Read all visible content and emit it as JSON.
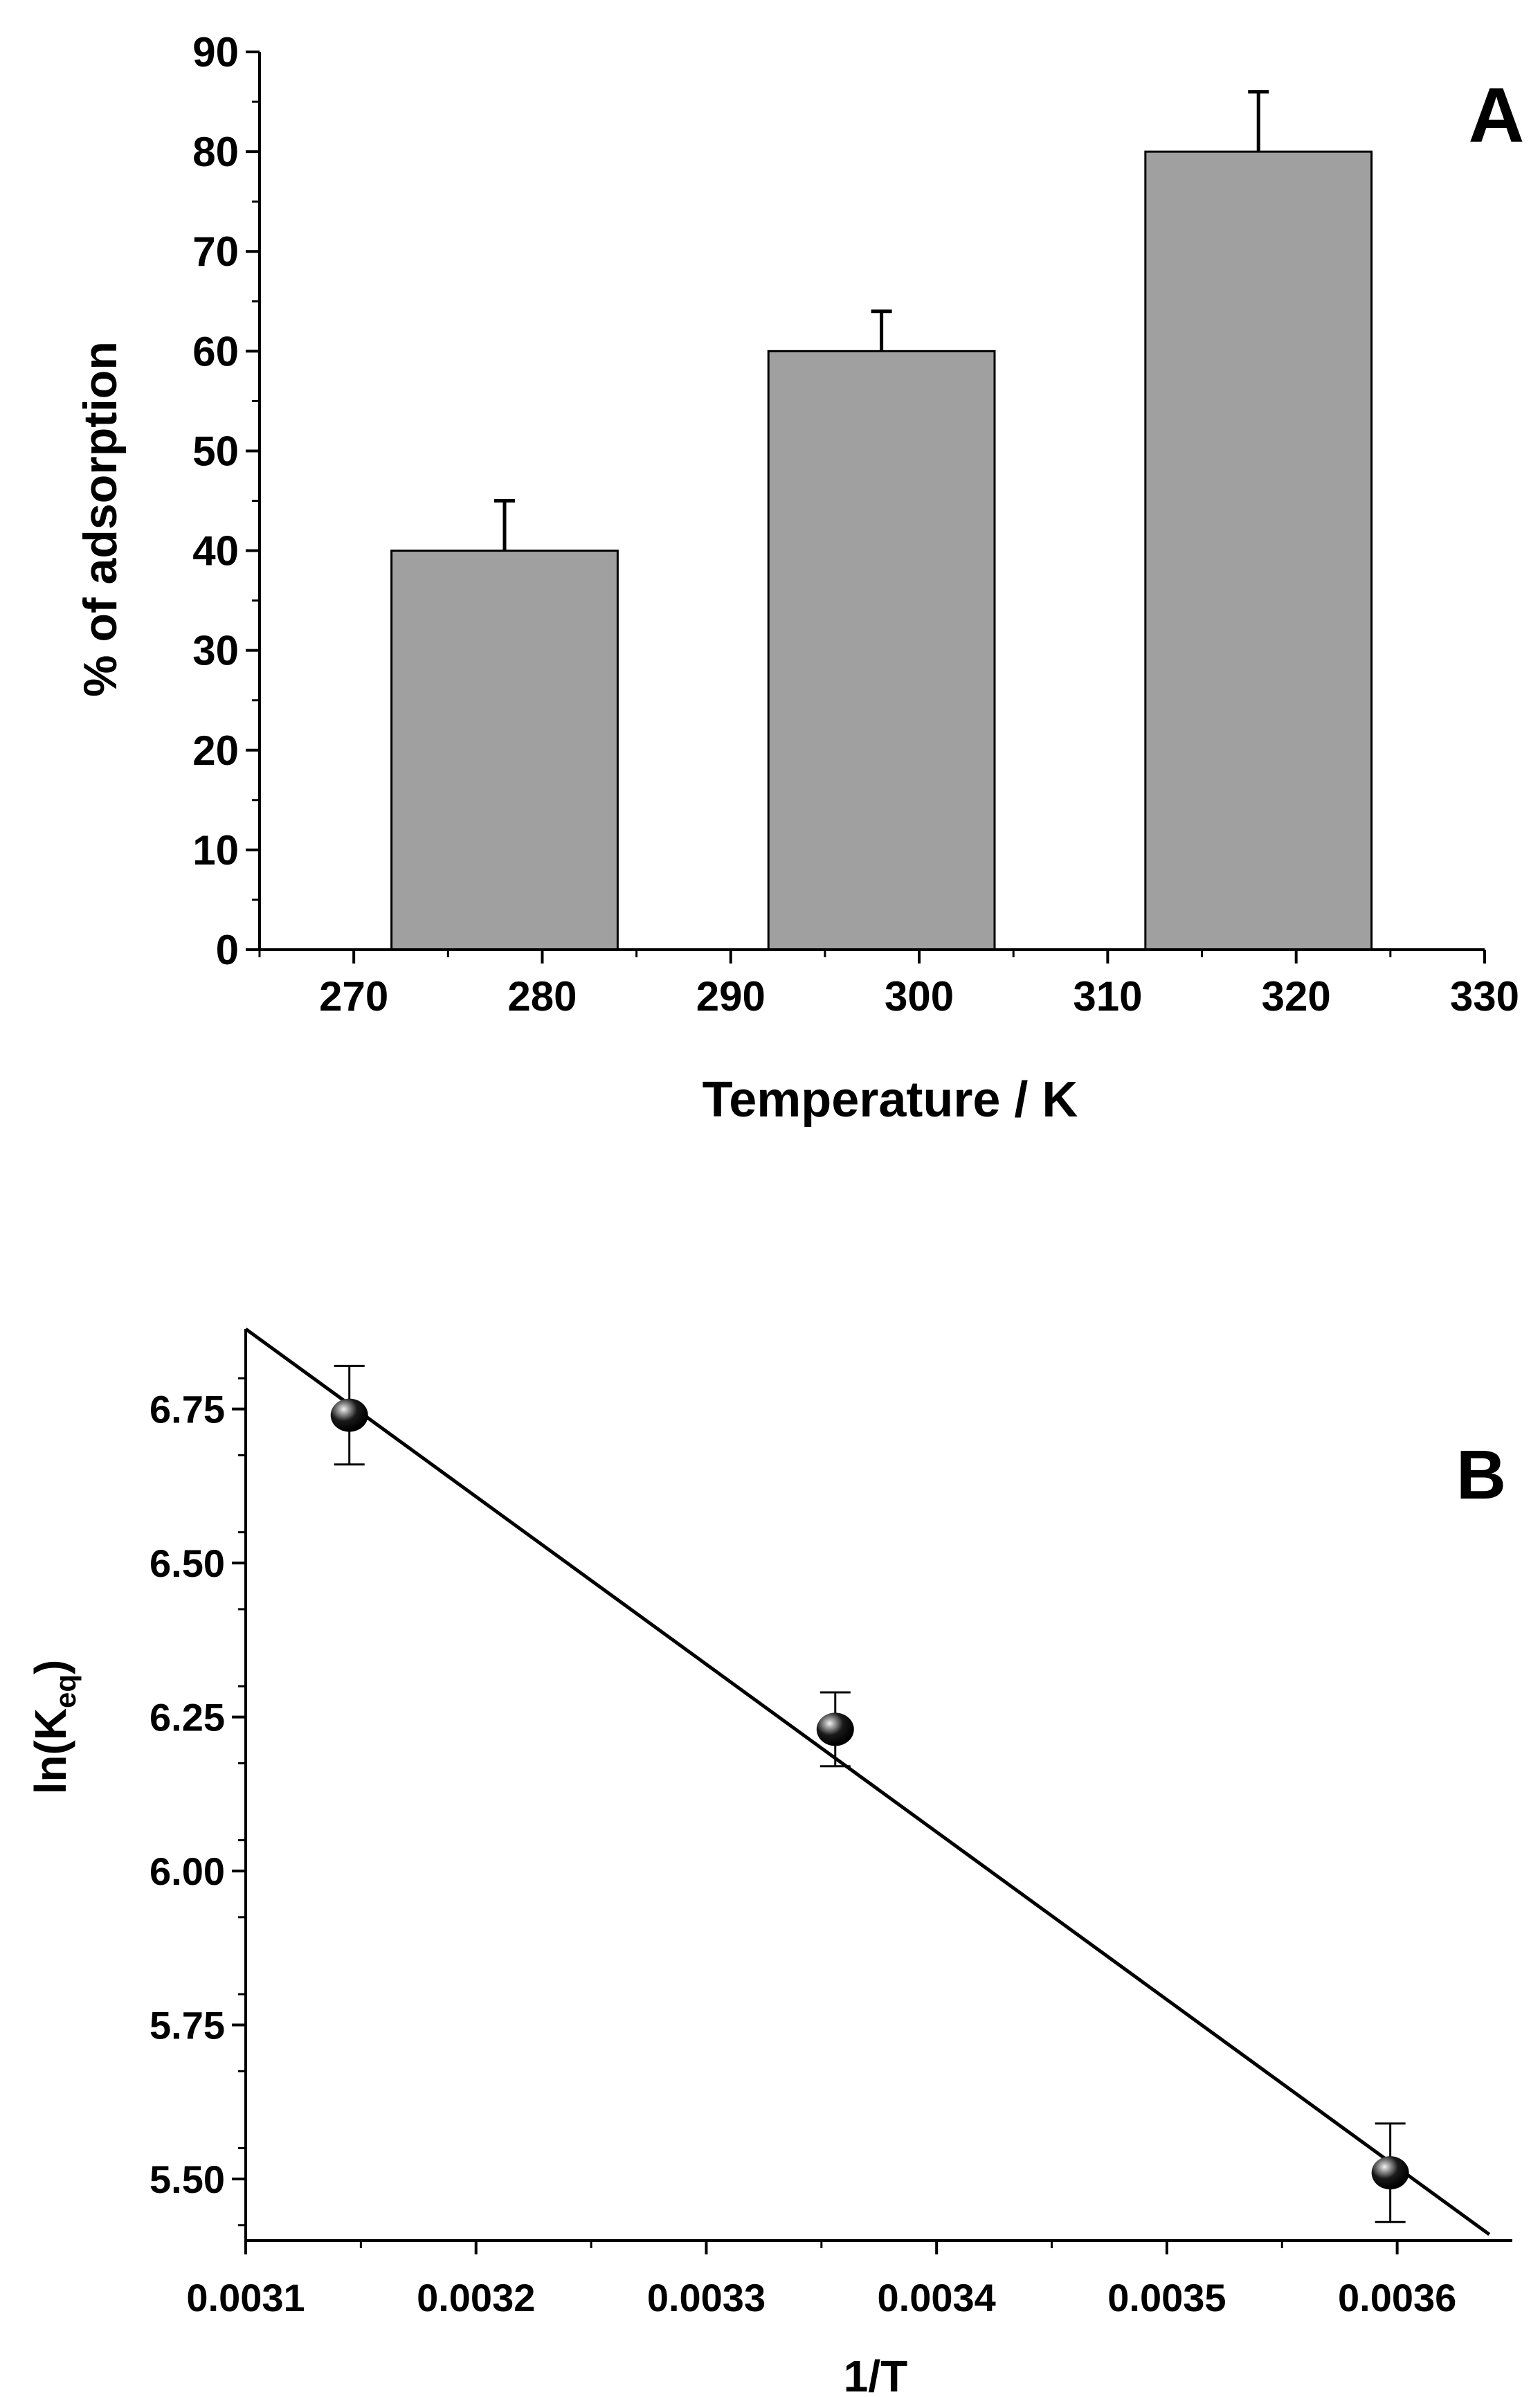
{
  "chart_data": [
    {
      "panel_label": "A",
      "type": "bar",
      "xlabel": "Temperature / K",
      "ylabel": "% of adsorption",
      "xlim": [
        265,
        330
      ],
      "ylim": [
        0,
        90
      ],
      "x_ticks": [
        270,
        280,
        290,
        300,
        310,
        320,
        330
      ],
      "y_ticks": [
        0,
        10,
        20,
        30,
        40,
        50,
        60,
        70,
        80,
        90
      ],
      "categories": [
        278,
        298,
        318
      ],
      "values": [
        40,
        60,
        80
      ],
      "errors": [
        5,
        4,
        6
      ],
      "bar_color": "#a0a0a0",
      "grid": false
    },
    {
      "panel_label": "B",
      "type": "scatter",
      "xlabel": "1/T",
      "ylabel_main": "ln(K",
      "ylabel_sub": "eq",
      "ylabel_tail": ")",
      "xlim": [
        0.0031,
        0.00365
      ],
      "ylim": [
        5.4,
        6.88
      ],
      "x_ticks": [
        "0.0031",
        "0.0032",
        "0.0033",
        "0.0034",
        "0.0035",
        "0.0036"
      ],
      "y_ticks": [
        "5.50",
        "5.75",
        "6.00",
        "6.25",
        "6.50",
        "6.75"
      ],
      "x": [
        0.003145,
        0.003356,
        0.003597
      ],
      "y": [
        6.74,
        6.23,
        5.51
      ],
      "errors": [
        0.08,
        0.06,
        0.08
      ],
      "fit_line": {
        "x": [
          0.0031,
          0.00364
        ],
        "y": [
          6.88,
          5.41
        ]
      },
      "grid": false
    }
  ]
}
